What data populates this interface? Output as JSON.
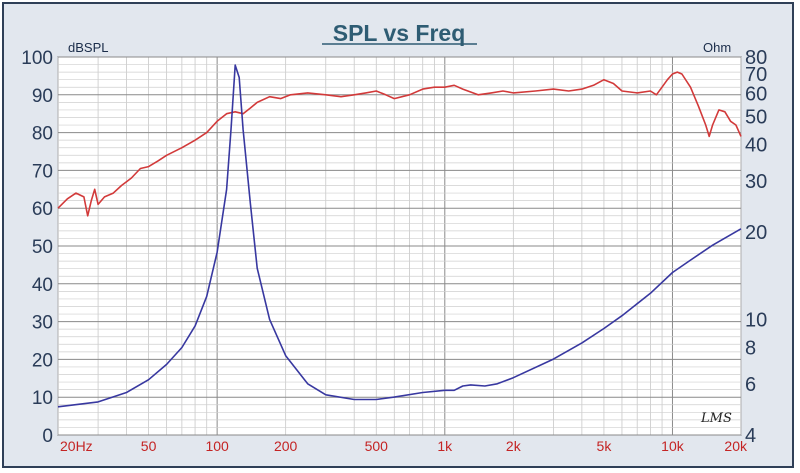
{
  "chart_data": {
    "type": "line",
    "title": "SPL vs Freq",
    "left_axis": {
      "unit": "dBSPL",
      "range": [
        0,
        100
      ],
      "ticks": [
        "0",
        "10",
        "20",
        "30",
        "40",
        "50",
        "60",
        "70",
        "80",
        "90",
        "100"
      ]
    },
    "right_axis": {
      "unit": "Ohm",
      "scale": "log",
      "range": [
        4,
        80
      ],
      "ticks": [
        "4",
        "6",
        "8",
        "10",
        "20",
        "30",
        "40",
        "50",
        "60",
        "70",
        "80"
      ]
    },
    "x_axis": {
      "scale": "log",
      "range": [
        20,
        20000
      ],
      "tick_values": [
        20,
        50,
        100,
        200,
        500,
        1000,
        2000,
        5000,
        10000,
        20000
      ],
      "tick_labels": [
        "20Hz",
        "50",
        "100",
        "200",
        "500",
        "1k",
        "2k",
        "5k",
        "10k",
        "20k"
      ]
    },
    "grid": true,
    "series": [
      {
        "axis": "left",
        "color": "#d23a3a",
        "points": [
          [
            20,
            60
          ],
          [
            22,
            62.5
          ],
          [
            24,
            64
          ],
          [
            26,
            63
          ],
          [
            27,
            58
          ],
          [
            28,
            62
          ],
          [
            29,
            65
          ],
          [
            30,
            61
          ],
          [
            32,
            63
          ],
          [
            35,
            64
          ],
          [
            38,
            66
          ],
          [
            42,
            68
          ],
          [
            46,
            70.5
          ],
          [
            50,
            71
          ],
          [
            55,
            72.5
          ],
          [
            60,
            74
          ],
          [
            70,
            76
          ],
          [
            80,
            78
          ],
          [
            90,
            80
          ],
          [
            100,
            83
          ],
          [
            110,
            85
          ],
          [
            120,
            85.5
          ],
          [
            130,
            85
          ],
          [
            140,
            86.5
          ],
          [
            150,
            88
          ],
          [
            170,
            89.5
          ],
          [
            190,
            89
          ],
          [
            210,
            90
          ],
          [
            250,
            90.5
          ],
          [
            300,
            90
          ],
          [
            350,
            89.5
          ],
          [
            400,
            90
          ],
          [
            450,
            90.5
          ],
          [
            500,
            91
          ],
          [
            550,
            90
          ],
          [
            600,
            89
          ],
          [
            700,
            90
          ],
          [
            800,
            91.5
          ],
          [
            900,
            92
          ],
          [
            1000,
            92
          ],
          [
            1100,
            92.5
          ],
          [
            1200,
            91.5
          ],
          [
            1400,
            90
          ],
          [
            1600,
            90.5
          ],
          [
            1800,
            91
          ],
          [
            2000,
            90.5
          ],
          [
            2500,
            91
          ],
          [
            3000,
            91.5
          ],
          [
            3500,
            91
          ],
          [
            4000,
            91.5
          ],
          [
            4500,
            92.5
          ],
          [
            5000,
            94
          ],
          [
            5500,
            93
          ],
          [
            6000,
            91
          ],
          [
            7000,
            90.5
          ],
          [
            8000,
            91
          ],
          [
            8500,
            90
          ],
          [
            9000,
            92
          ],
          [
            9500,
            94
          ],
          [
            10000,
            95.5
          ],
          [
            10500,
            96
          ],
          [
            11000,
            95.5
          ],
          [
            12000,
            92
          ],
          [
            13000,
            87
          ],
          [
            14000,
            82
          ],
          [
            14500,
            79
          ],
          [
            15000,
            82
          ],
          [
            16000,
            86
          ],
          [
            17000,
            85.5
          ],
          [
            18000,
            83
          ],
          [
            19000,
            82
          ],
          [
            20000,
            79
          ]
        ]
      },
      {
        "axis": "right",
        "color": "#3838a0",
        "points": [
          [
            20,
            5
          ],
          [
            30,
            5.2
          ],
          [
            40,
            5.6
          ],
          [
            50,
            6.2
          ],
          [
            60,
            7
          ],
          [
            70,
            8
          ],
          [
            80,
            9.5
          ],
          [
            90,
            12
          ],
          [
            100,
            17
          ],
          [
            110,
            28
          ],
          [
            115,
            45
          ],
          [
            120,
            75
          ],
          [
            125,
            68
          ],
          [
            130,
            45
          ],
          [
            140,
            25
          ],
          [
            150,
            15
          ],
          [
            170,
            10
          ],
          [
            200,
            7.5
          ],
          [
            250,
            6
          ],
          [
            300,
            5.5
          ],
          [
            400,
            5.3
          ],
          [
            500,
            5.3
          ],
          [
            600,
            5.4
          ],
          [
            800,
            5.6
          ],
          [
            1000,
            5.7
          ],
          [
            1100,
            5.7
          ],
          [
            1200,
            5.9
          ],
          [
            1300,
            5.95
          ],
          [
            1500,
            5.9
          ],
          [
            1700,
            6
          ],
          [
            2000,
            6.3
          ],
          [
            3000,
            7.3
          ],
          [
            4000,
            8.3
          ],
          [
            5000,
            9.3
          ],
          [
            6000,
            10.3
          ],
          [
            8000,
            12.3
          ],
          [
            10000,
            14.5
          ],
          [
            12000,
            16
          ],
          [
            15000,
            18
          ],
          [
            20000,
            20.5
          ]
        ]
      }
    ],
    "watermark": "LMS"
  }
}
